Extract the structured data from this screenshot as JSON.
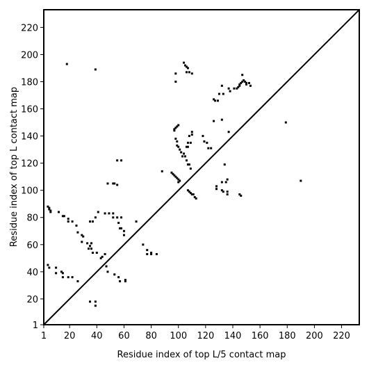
{
  "chart_data": {
    "type": "scatter",
    "xlabel": "Residue index of top L/5 contact map",
    "ylabel": "Residue index of top L contact map",
    "color": "#000000",
    "xlim": [
      1,
      233
    ],
    "ylim": [
      1,
      233
    ],
    "xticks": [
      1,
      20,
      40,
      60,
      80,
      100,
      120,
      140,
      160,
      180,
      200,
      220
    ],
    "yticks": [
      1,
      20,
      40,
      60,
      80,
      100,
      120,
      140,
      160,
      180,
      200,
      220
    ],
    "x": [
      18,
      39,
      5,
      4,
      5,
      6,
      6,
      12,
      15,
      16,
      19,
      19,
      22,
      25,
      26,
      29,
      30,
      29,
      33,
      34,
      35,
      36,
      36,
      37,
      40,
      39,
      41,
      43,
      44,
      46,
      46,
      49,
      52,
      52,
      55,
      56,
      57,
      58,
      58,
      60,
      60,
      48,
      52,
      53,
      55,
      55,
      58,
      69,
      74,
      77,
      77,
      80,
      80,
      84,
      88,
      4,
      5,
      10,
      10,
      14,
      15,
      15,
      19,
      22,
      26,
      35,
      39,
      39,
      47,
      48,
      53,
      56,
      57,
      61,
      61,
      35,
      37,
      95,
      96,
      97,
      98,
      99,
      100,
      101,
      100,
      97,
      98,
      99,
      100,
      97,
      98,
      99,
      99,
      100,
      101,
      102,
      103,
      104,
      105,
      106,
      107,
      106,
      107,
      108,
      107,
      109,
      108,
      110,
      110,
      109,
      104,
      105,
      106,
      107,
      106,
      108,
      110,
      98,
      98,
      107,
      108,
      109,
      110,
      111,
      112,
      113,
      118,
      119,
      121,
      122,
      124,
      126,
      127,
      129,
      130,
      132,
      133,
      132,
      126,
      134,
      135,
      136,
      128,
      128,
      132,
      132,
      133,
      136,
      136,
      137,
      137,
      138,
      141,
      143,
      144,
      145,
      145,
      146,
      147,
      148,
      149,
      150,
      150,
      152,
      153,
      147,
      145,
      146,
      179,
      190
    ],
    "y": [
      193,
      189,
      87,
      88,
      86,
      85,
      84,
      84,
      81,
      81,
      79,
      77,
      77,
      74,
      69,
      67,
      66,
      62,
      61,
      57,
      59,
      61,
      57,
      54,
      54,
      80,
      84,
      50,
      51,
      53,
      83,
      83,
      83,
      80,
      80,
      76,
      72,
      72,
      80,
      70,
      67,
      105,
      105,
      105,
      104,
      122,
      122,
      77,
      60,
      56,
      53,
      54,
      53,
      53,
      114,
      45,
      43,
      43,
      39,
      40,
      39,
      36,
      36,
      36,
      33,
      18,
      18,
      15,
      44,
      40,
      38,
      36,
      33,
      34,
      33,
      77,
      77,
      113,
      112,
      111,
      110,
      109,
      108,
      107,
      106,
      145,
      146,
      147,
      148,
      144,
      138,
      136,
      133,
      132,
      130,
      128,
      125,
      127,
      125,
      132,
      132,
      122,
      119,
      119,
      135,
      135,
      140,
      141,
      143,
      116,
      194,
      192,
      191,
      190,
      187,
      187,
      186,
      186,
      180,
      100,
      99,
      98,
      97,
      97,
      95,
      94,
      140,
      136,
      135,
      131,
      131,
      167,
      166,
      166,
      171,
      177,
      171,
      152,
      151,
      119,
      106,
      108,
      103,
      101,
      106,
      100,
      99,
      99,
      97,
      143,
      175,
      173,
      175,
      175,
      176,
      177,
      178,
      179,
      180,
      181,
      180,
      179,
      178,
      179,
      177,
      185,
      97,
      96,
      150,
      107
    ]
  }
}
